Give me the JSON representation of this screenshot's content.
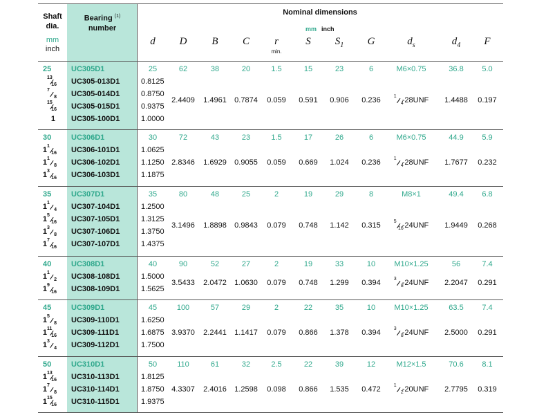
{
  "header": {
    "shaft": {
      "title": "Shaft dia.",
      "mm": "mm",
      "inch": "inch"
    },
    "bearing": {
      "title": "Bearing",
      "note": "(1)",
      "title2": "number"
    },
    "nominal": {
      "title": "Nominal dimensions",
      "mm": "mm",
      "inch": "inch"
    },
    "columns": [
      {
        "symbol": "d"
      },
      {
        "symbol": "D"
      },
      {
        "symbol": "B"
      },
      {
        "symbol": "C"
      },
      {
        "symbol": "r",
        "note": "min."
      },
      {
        "symbol": "S"
      },
      {
        "symbol": "S",
        "sub": "1"
      },
      {
        "symbol": "G"
      },
      {
        "symbol": "d",
        "sub": "s"
      },
      {
        "symbol": "d",
        "sub": "4"
      },
      {
        "symbol": "F"
      }
    ]
  },
  "groups": [
    {
      "shaft_mm": "25",
      "bearing": "UC305D1",
      "metric": [
        "25",
        "62",
        "38",
        "20",
        "1.5",
        "15",
        "23",
        "6",
        "M6×0.75",
        "36.8",
        "5.0"
      ],
      "inch_rows": [
        {
          "shaft": {
            "num": "13",
            "den": "16"
          },
          "bearing": "UC305-013D1",
          "d": "0.8125"
        },
        {
          "shaft": {
            "num": "7",
            "den": "8"
          },
          "bearing": "UC305-014D1",
          "d": "0.8750"
        },
        {
          "shaft": {
            "num": "15",
            "den": "16"
          },
          "bearing": "UC305-015D1",
          "d": "0.9375"
        },
        {
          "shaft": {
            "whole": "1"
          },
          "bearing": "UC305-100D1",
          "d": "1.0000"
        }
      ],
      "inch": [
        "2.4409",
        "1.4961",
        "0.7874",
        "0.059",
        "0.591",
        "0.906",
        "0.236",
        {
          "num": "1",
          "den": "4",
          "text": "-28UNF"
        },
        "1.4488",
        "0.197"
      ]
    },
    {
      "shaft_mm": "30",
      "bearing": "UC306D1",
      "metric": [
        "30",
        "72",
        "43",
        "23",
        "1.5",
        "17",
        "26",
        "6",
        "M6×0.75",
        "44.9",
        "5.9"
      ],
      "inch_rows": [
        {
          "shaft": {
            "whole": "1",
            "num": "1",
            "den": "16"
          },
          "bearing": "UC306-101D1",
          "d": "1.0625"
        },
        {
          "shaft": {
            "whole": "1",
            "num": "1",
            "den": "8"
          },
          "bearing": "UC306-102D1",
          "d": "1.1250"
        },
        {
          "shaft": {
            "whole": "1",
            "num": "3",
            "den": "16"
          },
          "bearing": "UC306-103D1",
          "d": "1.1875"
        }
      ],
      "inch": [
        "2.8346",
        "1.6929",
        "0.9055",
        "0.059",
        "0.669",
        "1.024",
        "0.236",
        {
          "num": "1",
          "den": "4",
          "text": "-28UNF"
        },
        "1.7677",
        "0.232"
      ]
    },
    {
      "shaft_mm": "35",
      "bearing": "UC307D1",
      "metric": [
        "35",
        "80",
        "48",
        "25",
        "2",
        "19",
        "29",
        "8",
        "M8×1",
        "49.4",
        "6.8"
      ],
      "inch_rows": [
        {
          "shaft": {
            "whole": "1",
            "num": "1",
            "den": "4"
          },
          "bearing": "UC307-104D1",
          "d": "1.2500"
        },
        {
          "shaft": {
            "whole": "1",
            "num": "5",
            "den": "16"
          },
          "bearing": "UC307-105D1",
          "d": "1.3125"
        },
        {
          "shaft": {
            "whole": "1",
            "num": "3",
            "den": "8"
          },
          "bearing": "UC307-106D1",
          "d": "1.3750"
        },
        {
          "shaft": {
            "whole": "1",
            "num": "7",
            "den": "16"
          },
          "bearing": "UC307-107D1",
          "d": "1.4375"
        }
      ],
      "inch": [
        "3.1496",
        "1.8898",
        "0.9843",
        "0.079",
        "0.748",
        "1.142",
        "0.315",
        {
          "num": "5",
          "den": "16",
          "text": "-24UNF"
        },
        "1.9449",
        "0.268"
      ]
    },
    {
      "shaft_mm": "40",
      "bearing": "UC308D1",
      "metric": [
        "40",
        "90",
        "52",
        "27",
        "2",
        "19",
        "33",
        "10",
        "M10×1.25",
        "56",
        "7.4"
      ],
      "inch_rows": [
        {
          "shaft": {
            "whole": "1",
            "num": "1",
            "den": "2"
          },
          "bearing": "UC308-108D1",
          "d": "1.5000"
        },
        {
          "shaft": {
            "whole": "1",
            "num": "9",
            "den": "16"
          },
          "bearing": "UC308-109D1",
          "d": "1.5625"
        }
      ],
      "inch": [
        "3.5433",
        "2.0472",
        "1.0630",
        "0.079",
        "0.748",
        "1.299",
        "0.394",
        {
          "num": "3",
          "den": "8",
          "text": "-24UNF"
        },
        "2.2047",
        "0.291"
      ]
    },
    {
      "shaft_mm": "45",
      "bearing": "UC309D1",
      "metric": [
        "45",
        "100",
        "57",
        "29",
        "2",
        "22",
        "35",
        "10",
        "M10×1.25",
        "63.5",
        "7.4"
      ],
      "inch_rows": [
        {
          "shaft": {
            "whole": "1",
            "num": "5",
            "den": "8"
          },
          "bearing": "UC309-110D1",
          "d": "1.6250"
        },
        {
          "shaft": {
            "whole": "1",
            "num": "11",
            "den": "16"
          },
          "bearing": "UC309-111D1",
          "d": "1.6875"
        },
        {
          "shaft": {
            "whole": "1",
            "num": "3",
            "den": "4"
          },
          "bearing": "UC309-112D1",
          "d": "1.7500"
        }
      ],
      "inch": [
        "3.9370",
        "2.2441",
        "1.1417",
        "0.079",
        "0.866",
        "1.378",
        "0.394",
        {
          "num": "3",
          "den": "8",
          "text": "-24UNF"
        },
        "2.5000",
        "0.291"
      ]
    },
    {
      "shaft_mm": "50",
      "bearing": "UC310D1",
      "metric": [
        "50",
        "110",
        "61",
        "32",
        "2.5",
        "22",
        "39",
        "12",
        "M12×1.5",
        "70.6",
        "8.1"
      ],
      "inch_rows": [
        {
          "shaft": {
            "whole": "1",
            "num": "13",
            "den": "16"
          },
          "bearing": "UC310-113D1",
          "d": "1.8125"
        },
        {
          "shaft": {
            "whole": "1",
            "num": "7",
            "den": "8"
          },
          "bearing": "UC310-114D1",
          "d": "1.8750"
        },
        {
          "shaft": {
            "whole": "1",
            "num": "15",
            "den": "16"
          },
          "bearing": "UC310-115D1",
          "d": "1.9375"
        }
      ],
      "inch": [
        "4.3307",
        "2.4016",
        "1.2598",
        "0.098",
        "0.866",
        "1.535",
        "0.472",
        {
          "num": "1",
          "den": "2",
          "text": "-20UNF"
        },
        "2.7795",
        "0.319"
      ]
    }
  ]
}
